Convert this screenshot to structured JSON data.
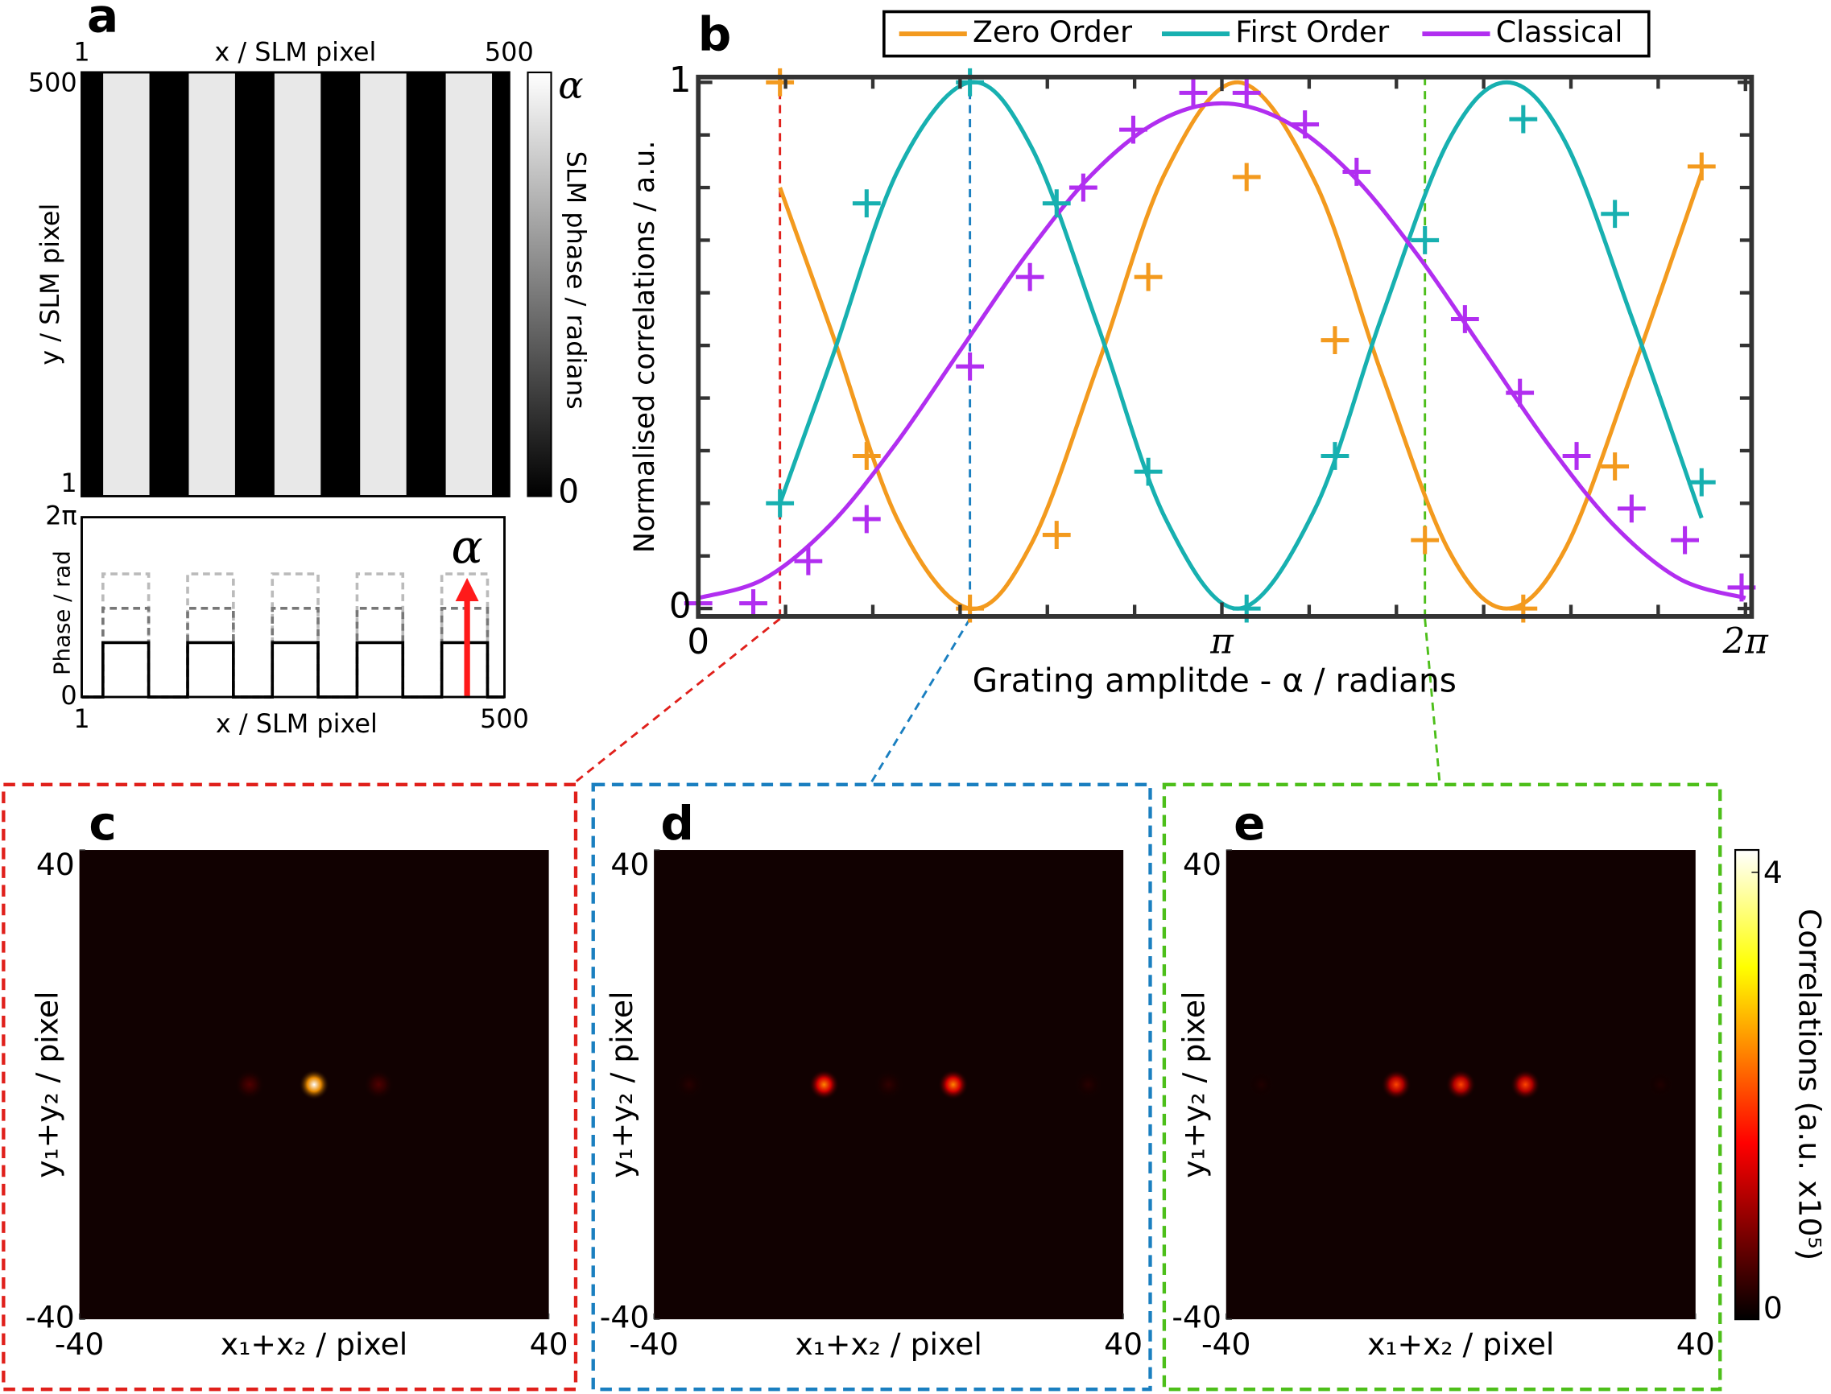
{
  "chart_data": [
    {
      "type": "image",
      "panel": "a",
      "xlabel": "x / SLM pixel",
      "ylabel": "y / SLM pixel",
      "xlim": [
        1,
        500
      ],
      "ylim": [
        1,
        500
      ],
      "xticks": [
        1,
        500
      ],
      "yticks": [
        1,
        500
      ],
      "stripe_edges": [
        [
          26,
          80
        ],
        [
          126,
          180
        ],
        [
          226,
          280
        ],
        [
          326,
          380
        ],
        [
          426,
          480
        ]
      ],
      "colormap": "gray",
      "colorbar": {
        "label": "SLM phase / radians",
        "lim": [
          0,
          1
        ],
        "ticks": [
          0,
          {
            "value": 1,
            "label": "α"
          }
        ]
      }
    },
    {
      "type": "step",
      "ylabel": "Phase / rad",
      "xlabel": "x / SLM pixel",
      "xlim": [
        1,
        500
      ],
      "ylim": [
        0,
        6.2832
      ],
      "xticks": [
        1,
        500
      ],
      "yticks": [
        0,
        {
          "value": 6.2832,
          "label": "2π"
        }
      ],
      "series": [
        {
          "color": "#bbbbbb",
          "dashed": true,
          "level": 4.3
        },
        {
          "color": "#777777",
          "dashed": true,
          "level": 3.1
        },
        {
          "color": "#000000",
          "dashed": false,
          "level": 1.9
        }
      ],
      "annotation": "α",
      "annotation_color": "#ff1a1a"
    },
    {
      "type": "line",
      "panel": "b",
      "xlabel": "Grating amplitde - α / radians",
      "ylabel": "Normalised correlations / a.u.",
      "xlim": [
        0,
        6.32
      ],
      "ylim": [
        -0.015,
        1.01
      ],
      "xticks": [
        0,
        {
          "value": 3.1416,
          "label": "π"
        },
        {
          "value": 6.2832,
          "label": "2π"
        }
      ],
      "xminor": [
        0.5236,
        1.0472,
        1.5708,
        2.0944,
        2.618,
        3.6652,
        4.1888,
        4.7124,
        5.236,
        5.7596
      ],
      "yticks": [
        0,
        1
      ],
      "yminor": [
        0.1,
        0.2,
        0.3,
        0.4,
        0.5,
        0.6,
        0.7,
        0.8,
        0.9
      ],
      "legend": "top-outside",
      "guides": [
        {
          "x": 0.49,
          "color": "#e0201b"
        },
        {
          "x": 1.63,
          "color": "#1a7fc0"
        },
        {
          "x": 4.36,
          "color": "#4dbf1a"
        }
      ],
      "series": [
        {
          "name": "Zero Order",
          "color": "#f39a1e",
          "x": [
            0.49,
            1.01,
            1.63,
            2.15,
            2.7,
            3.29,
            3.82,
            4.36,
            4.95,
            5.5,
            6.02
          ],
          "values": [
            1.0,
            0.29,
            0.0,
            0.14,
            0.63,
            0.82,
            0.51,
            0.13,
            0.0,
            0.27,
            0.84
          ],
          "fit_x": [
            0.49,
            0.8,
            1.2,
            1.63,
            2.0,
            2.4,
            2.8,
            3.24,
            3.7,
            4.1,
            4.5,
            4.85,
            5.2,
            5.6,
            6.02
          ],
          "fit_values": [
            0.8,
            0.526,
            0.166,
            0,
            0.124,
            0.465,
            0.827,
            1,
            0.811,
            0.446,
            0.112,
            0,
            0.112,
            0.446,
            0.828
          ]
        },
        {
          "name": "First Order",
          "color": "#17b0b0",
          "x": [
            0.49,
            1.01,
            1.63,
            2.15,
            2.7,
            3.29,
            3.82,
            4.36,
            4.95,
            5.5,
            6.02
          ],
          "values": [
            0.2,
            0.77,
            1.0,
            0.77,
            0.26,
            0.0,
            0.29,
            0.7,
            0.93,
            0.75,
            0.24
          ],
          "fit_x": [
            0.49,
            0.8,
            1.2,
            1.63,
            2.0,
            2.4,
            2.8,
            3.24,
            3.7,
            4.1,
            4.5,
            4.85,
            5.2,
            5.6,
            6.02
          ],
          "fit_values": [
            0.2,
            0.474,
            0.834,
            1,
            0.876,
            0.535,
            0.173,
            0,
            0.189,
            0.554,
            0.888,
            1,
            0.888,
            0.554,
            0.172
          ]
        },
        {
          "name": "Classical",
          "color": "#b12ef0",
          "x": [
            0,
            0.33,
            0.66,
            1.01,
            1.63,
            1.99,
            2.31,
            2.61,
            2.97,
            3.29,
            3.64,
            3.95,
            4.6,
            4.93,
            5.27,
            5.6,
            5.92,
            6.26
          ],
          "values": [
            0.01,
            0.01,
            0.09,
            0.17,
            0.46,
            0.63,
            0.8,
            0.91,
            0.98,
            0.98,
            0.92,
            0.83,
            0.55,
            0.41,
            0.29,
            0.19,
            0.13,
            0.04
          ],
          "fit_x": [
            0,
            0.3927,
            0.7854,
            1.1781,
            1.5708,
            1.9635,
            2.3562,
            2.7489,
            3.1416,
            3.5343,
            3.927,
            4.3197,
            4.7124,
            5.1051,
            5.4978,
            5.8905,
            6.2832
          ],
          "fit_values": [
            0.02,
            0.056,
            0.157,
            0.31,
            0.49,
            0.67,
            0.823,
            0.924,
            0.96,
            0.924,
            0.823,
            0.67,
            0.49,
            0.31,
            0.157,
            0.056,
            0.02
          ]
        }
      ]
    },
    {
      "type": "heatmap",
      "panel": "c",
      "xlabel": "x₁+x₂ / pixel",
      "ylabel": "y₁+y₂ / pixel",
      "xlim": [
        -40,
        40
      ],
      "ylim": [
        -40,
        40
      ],
      "xticks": [
        -40,
        40
      ],
      "yticks": [
        -40,
        40
      ],
      "colormap": "hot",
      "clim": [
        0,
        4.2
      ],
      "frame_color": "#e0201b",
      "spots": [
        {
          "x": -11,
          "value": 0.5
        },
        {
          "x": 0,
          "value": 4.2
        },
        {
          "x": 11,
          "value": 0.5
        }
      ]
    },
    {
      "type": "heatmap",
      "panel": "d",
      "xlabel": "x₁+x₂ / pixel",
      "ylabel": "y₁+y₂ / pixel",
      "xlim": [
        -40,
        40
      ],
      "ylim": [
        -40,
        40
      ],
      "xticks": [
        -40,
        40
      ],
      "yticks": [
        -40,
        40
      ],
      "colormap": "hot",
      "clim": [
        0,
        4.2
      ],
      "frame_color": "#1a7fc0",
      "spots": [
        {
          "x": -34,
          "value": 0.25
        },
        {
          "x": -11,
          "value": 2.4
        },
        {
          "x": 0,
          "value": 0.3
        },
        {
          "x": 11,
          "value": 2.4
        },
        {
          "x": 34,
          "value": 0.25
        }
      ]
    },
    {
      "type": "heatmap",
      "panel": "e",
      "xlabel": "x₁+x₂ / pixel",
      "ylabel": "y₁+y₂ / pixel",
      "xlim": [
        -40,
        40
      ],
      "ylim": [
        -40,
        40
      ],
      "xticks": [
        -40,
        40
      ],
      "yticks": [
        -40,
        40
      ],
      "colormap": "hot",
      "clim": [
        0,
        4.2
      ],
      "frame_color": "#4dbf1a",
      "spots": [
        {
          "x": -34,
          "value": 0.2
        },
        {
          "x": -11,
          "value": 2.0
        },
        {
          "x": 0,
          "value": 2.0
        },
        {
          "x": 11,
          "value": 2.0
        },
        {
          "x": 34,
          "value": 0.2
        }
      ],
      "colorbar": {
        "label": "Correlations (a.u. x10⁵)",
        "lim": [
          0,
          4.2
        ],
        "ticks": [
          0,
          4
        ]
      }
    }
  ]
}
